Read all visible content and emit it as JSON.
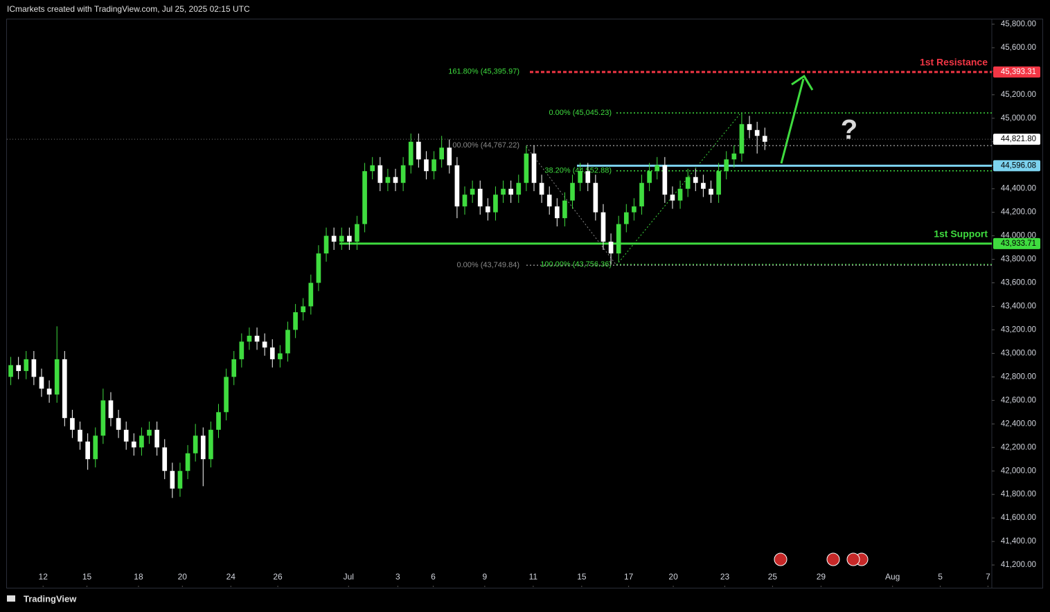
{
  "header": "ICmarkets created with TradingView.com, Jul 25, 2025 02:15 UTC",
  "footer": "TradingView",
  "chart_data": {
    "type": "candlestick",
    "up_color": "#3fdc3f",
    "down_color": "#ffffff",
    "open": [
      42800,
      42900,
      42850,
      42950,
      42800,
      42700,
      42650,
      42950,
      42450,
      42350,
      42250,
      42100,
      42300,
      42600,
      42450,
      42350,
      42250,
      42200,
      42300,
      42350,
      42200,
      42000,
      41850,
      42000,
      42150,
      42300,
      42100,
      42350,
      42500,
      42800,
      42950,
      43100,
      43150,
      43100,
      43050,
      42950,
      43000,
      43200,
      43350,
      43400,
      43600,
      43850,
      44000,
      43950,
      44000,
      43950,
      44100,
      44550,
      44600,
      44450,
      44500,
      44450,
      44600,
      44800,
      44650,
      44550,
      44650,
      44750,
      44600,
      44250,
      44350,
      44400,
      44250,
      44200,
      44350,
      44400,
      44350,
      44450,
      44700,
      44450,
      44350,
      44250,
      44150,
      44300,
      44450,
      44550,
      44450,
      44200,
      43950,
      43850,
      44100,
      44200,
      44250,
      44450,
      44550,
      44600,
      44350,
      44300,
      44400,
      44500,
      44450,
      44400,
      44350,
      44550,
      44650,
      44700,
      44950,
      44900,
      44850
    ],
    "high": [
      42970,
      42970,
      43020,
      43020,
      42870,
      42770,
      43230,
      43020,
      42520,
      42420,
      42320,
      42370,
      42700,
      42670,
      42520,
      42420,
      42320,
      42370,
      42420,
      42420,
      42270,
      42070,
      42070,
      42220,
      42400,
      42370,
      42420,
      42570,
      42870,
      43020,
      43170,
      43220,
      43220,
      43170,
      43120,
      43070,
      43270,
      43420,
      43470,
      43670,
      43920,
      44070,
      44070,
      44070,
      44070,
      44170,
      44620,
      44670,
      44670,
      44570,
      44570,
      44670,
      44870,
      44870,
      44720,
      44720,
      44850,
      44820,
      44670,
      44420,
      44470,
      44470,
      44320,
      44420,
      44470,
      44470,
      44520,
      44767,
      44770,
      44520,
      44420,
      44320,
      44370,
      44520,
      44620,
      44620,
      44520,
      44270,
      44020,
      44170,
      44270,
      44320,
      44520,
      44620,
      44670,
      44670,
      44420,
      44470,
      44570,
      44570,
      44520,
      44470,
      44620,
      44720,
      44770,
      45045,
      45020,
      44970,
      44920
    ],
    "low": [
      42730,
      42780,
      42780,
      42730,
      42630,
      42580,
      42580,
      42380,
      42280,
      42180,
      42010,
      42030,
      42230,
      42380,
      42280,
      42180,
      42130,
      42130,
      42230,
      42130,
      41930,
      41770,
      41780,
      41930,
      42080,
      41870,
      42030,
      42280,
      42430,
      42730,
      42880,
      43030,
      43030,
      42980,
      42880,
      42880,
      42930,
      43130,
      43280,
      43330,
      43530,
      43780,
      43880,
      43880,
      43880,
      43880,
      44030,
      44480,
      44380,
      44380,
      44380,
      44380,
      44530,
      44580,
      44480,
      44480,
      44580,
      44530,
      44150,
      44180,
      44280,
      44180,
      44130,
      44130,
      44280,
      44280,
      44280,
      44380,
      44380,
      44280,
      44180,
      44080,
      44080,
      44230,
      44380,
      44380,
      44130,
      43880,
      43756,
      43780,
      44030,
      44130,
      44180,
      44380,
      44480,
      44280,
      44230,
      44230,
      44330,
      44380,
      44330,
      44280,
      44280,
      44480,
      44580,
      44630,
      44830,
      44700,
      44730
    ],
    "close": [
      42900,
      42850,
      42950,
      42800,
      42700,
      42650,
      42950,
      42450,
      42350,
      42250,
      42100,
      42300,
      42600,
      42450,
      42350,
      42250,
      42200,
      42300,
      42350,
      42200,
      42000,
      41850,
      42000,
      42150,
      42300,
      42100,
      42350,
      42500,
      42800,
      42950,
      43100,
      43150,
      43100,
      43050,
      42950,
      43000,
      43200,
      43350,
      43400,
      43600,
      43850,
      44000,
      43950,
      44000,
      43950,
      44100,
      44550,
      44600,
      44450,
      44500,
      44450,
      44600,
      44800,
      44650,
      44550,
      44650,
      44750,
      44600,
      44250,
      44350,
      44400,
      44250,
      44200,
      44350,
      44400,
      44350,
      44450,
      44700,
      44450,
      44350,
      44250,
      44150,
      44300,
      44450,
      44550,
      44450,
      44200,
      43950,
      43850,
      44100,
      44200,
      44250,
      44450,
      44550,
      44600,
      44350,
      44300,
      44400,
      44500,
      44450,
      44400,
      44350,
      44550,
      44650,
      44700,
      44950,
      44900,
      44850,
      44800
    ],
    "xlim": [
      0,
      128
    ],
    "xticks": [
      {
        "value": 4.7,
        "label": "12"
      },
      {
        "value": 10.4,
        "label": "15"
      },
      {
        "value": 17.1,
        "label": "18"
      },
      {
        "value": 22.8,
        "label": "20"
      },
      {
        "value": 29.1,
        "label": "24"
      },
      {
        "value": 35.2,
        "label": "26"
      },
      {
        "value": 44.4,
        "label": "Jul"
      },
      {
        "value": 50.8,
        "label": "3"
      },
      {
        "value": 55.4,
        "label": "6"
      },
      {
        "value": 62.1,
        "label": "9"
      },
      {
        "value": 68.4,
        "label": "11"
      },
      {
        "value": 74.7,
        "label": "15"
      },
      {
        "value": 80.8,
        "label": "17"
      },
      {
        "value": 86.6,
        "label": "20"
      },
      {
        "value": 93.3,
        "label": "23"
      },
      {
        "value": 99.5,
        "label": "25"
      },
      {
        "value": 105.8,
        "label": "29"
      },
      {
        "value": 115.1,
        "label": "Aug"
      },
      {
        "value": 121.3,
        "label": "5"
      },
      {
        "value": 127.5,
        "label": "7"
      }
    ],
    "ylim": [
      41012,
      45841
    ],
    "yticks": [
      {
        "value": 41200,
        "label": "41,200.00"
      },
      {
        "value": 41400,
        "label": "41,400.00"
      },
      {
        "value": 41600,
        "label": "41,600.00"
      },
      {
        "value": 41800,
        "label": "41,800.00"
      },
      {
        "value": 42000,
        "label": "42,000.00"
      },
      {
        "value": 42200,
        "label": "42,200.00"
      },
      {
        "value": 42400,
        "label": "42,400.00"
      },
      {
        "value": 42600,
        "label": "42,600.00"
      },
      {
        "value": 42800,
        "label": "42,800.00"
      },
      {
        "value": 43000,
        "label": "43,000.00"
      },
      {
        "value": 43200,
        "label": "43,200.00"
      },
      {
        "value": 43400,
        "label": "43,400.00"
      },
      {
        "value": 43600,
        "label": "43,600.00"
      },
      {
        "value": 43800,
        "label": "43,800.00"
      },
      {
        "value": 44000,
        "label": "44,000.00"
      },
      {
        "value": 44200,
        "label": "44,200.00"
      },
      {
        "value": 44400,
        "label": "44,400.00"
      },
      {
        "value": 44600,
        "label": "44,600.00"
      },
      {
        "value": 44800,
        "label": "44,800.00"
      },
      {
        "value": 45000,
        "label": "45,000.00"
      },
      {
        "value": 45200,
        "label": "45,200.00"
      },
      {
        "value": 45400,
        "label": "45,400.00"
      },
      {
        "value": 45600,
        "label": "45,600.00"
      },
      {
        "value": 45800,
        "label": "45,800.00"
      }
    ],
    "levels": [
      {
        "name": "1st Resistance",
        "value": 45393.31,
        "value_label": "45,393.31",
        "color": "#f23645"
      },
      {
        "name": "1st Support",
        "value": 43933.71,
        "value_label": "43,933.71",
        "color": "#3fdc3f"
      }
    ],
    "zone": {
      "value": 44596.08,
      "value_label": "44,596.08",
      "color": "#7dd3f0"
    },
    "last_price": {
      "value": 44821.8,
      "value_label": "44,821.80"
    },
    "fib_labels": [
      {
        "text": "161.80% (45,395.97)",
        "value": 45395.97,
        "color": "#3fdc3f"
      },
      {
        "text": "0.00% (45,045.23)",
        "value": 45045.23,
        "color": "#3fdc3f"
      },
      {
        "text": "38.20% (44,552.88)",
        "value": 44552.88,
        "color": "#3fdc3f"
      },
      {
        "text": "100.00% (43,756.36)",
        "value": 43756.36,
        "color": "#3fdc3f"
      },
      {
        "text": "00.00% (44,767.22)",
        "value": 44767.22,
        "color": "#8a8a8a"
      },
      {
        "text": "0.00% (43,749.84)",
        "value": 43749.84,
        "color": "#8a8a8a"
      }
    ],
    "annotation": "?"
  }
}
